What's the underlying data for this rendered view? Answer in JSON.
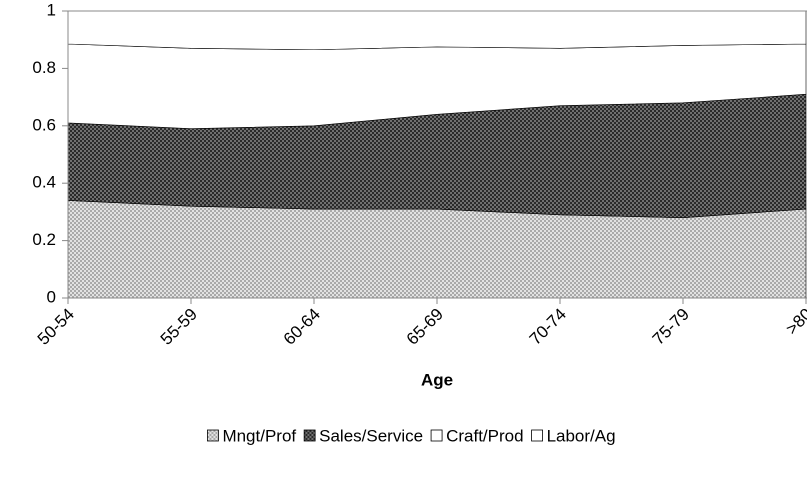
{
  "chart_data": {
    "type": "stacked_area",
    "x_label": "Age",
    "categories": [
      "50-54",
      "55-59",
      "60-64",
      "65-69",
      "70-74",
      "75-79",
      ">80"
    ],
    "series": [
      {
        "name": "Mngt/Prof",
        "color": "#c8c8c8",
        "values": [
          0.34,
          0.32,
          0.31,
          0.31,
          0.29,
          0.28,
          0.31
        ]
      },
      {
        "name": "Sales/Service",
        "color": "#4a4a4a",
        "values": [
          0.27,
          0.27,
          0.29,
          0.33,
          0.38,
          0.4,
          0.4
        ]
      },
      {
        "name": "Craft/Prod",
        "color": "#ffffff",
        "values": [
          0.275,
          0.28,
          0.265,
          0.235,
          0.2,
          0.2,
          0.175
        ]
      },
      {
        "name": "Labor/Ag",
        "color": "#ffffff",
        "values": [
          0.115,
          0.13,
          0.135,
          0.125,
          0.13,
          0.12,
          0.115
        ]
      }
    ],
    "ylim": [
      0,
      1
    ],
    "yticks": [
      0,
      0.2,
      0.4,
      0.6,
      0.8,
      1
    ],
    "legend": "bottom"
  }
}
